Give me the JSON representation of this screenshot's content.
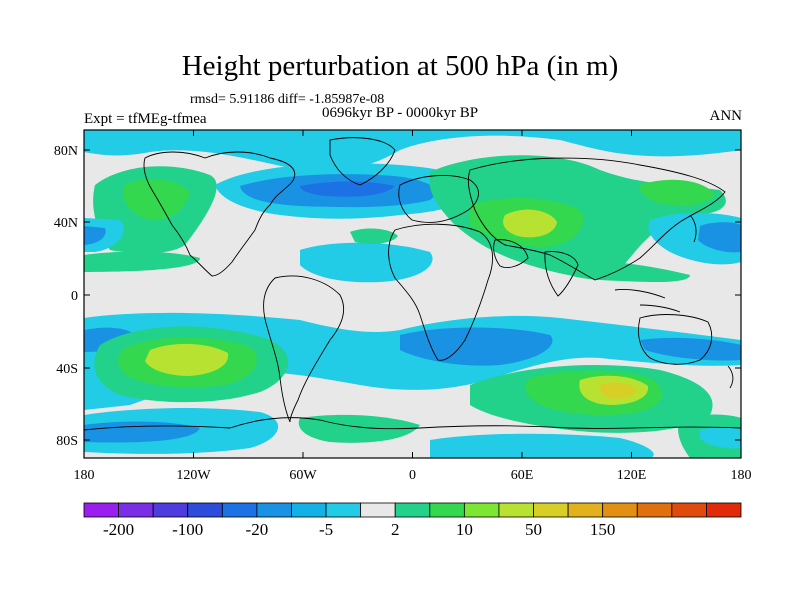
{
  "header": {
    "title": "Height perturbation at 500 hPa (in m)",
    "stats": "rmsd= 5.91186 diff= -1.85987e-08",
    "experiment": "Expt = tfMEg-tfmea",
    "period": "0696kyr BP - 0000kyr BP",
    "season": "ANN"
  },
  "axes": {
    "lat_labels": [
      "80N",
      "40N",
      "0",
      "40S",
      "80S"
    ],
    "lon_labels": [
      "180",
      "120W",
      "60W",
      "0",
      "60E",
      "120E",
      "180"
    ]
  },
  "colorbar": {
    "labels": [
      "-200",
      "-100",
      "-20",
      "-5",
      "2",
      "10",
      "50",
      "150"
    ],
    "colors": [
      "#9a1ef0",
      "#7a2ee6",
      "#4e3cde",
      "#2c4cdc",
      "#1c72e4",
      "#1a92e4",
      "#12b2e6",
      "#22cce6",
      "#e8e8e8",
      "#22d28a",
      "#33d84e",
      "#7ce632",
      "#b8e232",
      "#d8cf26",
      "#e2b21c",
      "#e29014",
      "#e0700e",
      "#e04a0c",
      "#e02a08"
    ]
  },
  "palette": {
    "neutral": "#e8e8e8",
    "blue_light": "#22cce6",
    "blue_mid": "#1a92e4",
    "blue_dark": "#1c72e4",
    "green_light": "#22d28a",
    "green": "#33d84e",
    "yellow_green": "#b8e232",
    "yellow": "#d8cf26"
  }
}
